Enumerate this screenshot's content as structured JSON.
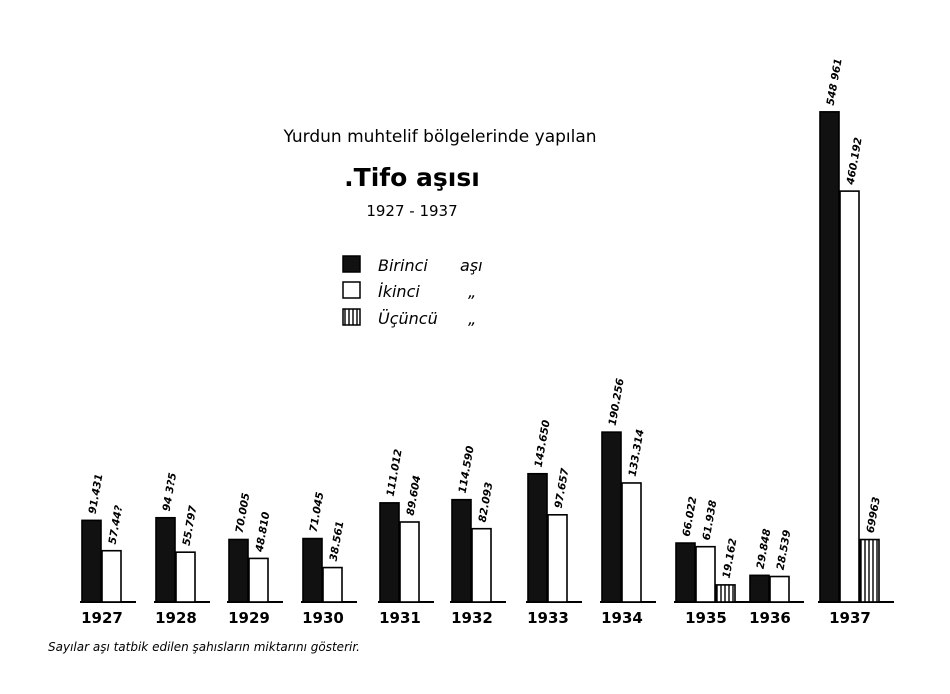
{
  "chart_data": {
    "type": "bar",
    "title_line1": "Yurdun muhtelif bölgelerinde yapılan",
    "title_line2": ".Tifo aşısı",
    "title_line3": "1927 - 1937",
    "categories": [
      "1927",
      "1928",
      "1929",
      "1930",
      "1931",
      "1932",
      "1933",
      "1934",
      "1935",
      "1936",
      "1937"
    ],
    "series": [
      {
        "name": "Birinci aşı",
        "fill": "#111111",
        "values": [
          91431,
          94355,
          70005,
          71045,
          111012,
          114590,
          143650,
          190256,
          66022,
          29848,
          548961
        ],
        "labels": [
          "91.431",
          "94 3?5",
          "70.005",
          "71.045",
          "111.012",
          "114.590",
          "143.650",
          "190.256",
          "66.022",
          "29.848",
          "548 961"
        ]
      },
      {
        "name": "İkinci",
        "fill": "#ffffff",
        "values": [
          57442,
          55797,
          48810,
          38561,
          89604,
          82093,
          97657,
          133314,
          61938,
          28539,
          460192
        ],
        "labels": [
          "57.44?",
          "55.797",
          "48.810",
          "38.561",
          "89.604",
          "82.093",
          "97.657",
          "133.314",
          "61.938",
          "28.539",
          "460.192"
        ]
      },
      {
        "name": "Üçüncü",
        "fill": "hatch",
        "values": [
          null,
          null,
          null,
          null,
          null,
          null,
          null,
          null,
          19162,
          null,
          69963
        ],
        "labels": [
          "",
          "",
          "",
          "",
          "",
          "",
          "",
          "",
          "19.162",
          "",
          "69963"
        ]
      }
    ],
    "legend": {
      "placement": "left-center",
      "items": [
        {
          "label": "Birinci",
          "suffix": "aşı"
        },
        {
          "label": "İkinci",
          "suffix": "„"
        },
        {
          "label": "Üçüncü",
          "suffix": "„"
        }
      ]
    },
    "note": "Sayılar aşı tatbik edilen şahısların miktarını gösterir.",
    "xlabel": "",
    "ylabel": "",
    "ylim": [
      0,
      560000
    ],
    "grid": false
  }
}
